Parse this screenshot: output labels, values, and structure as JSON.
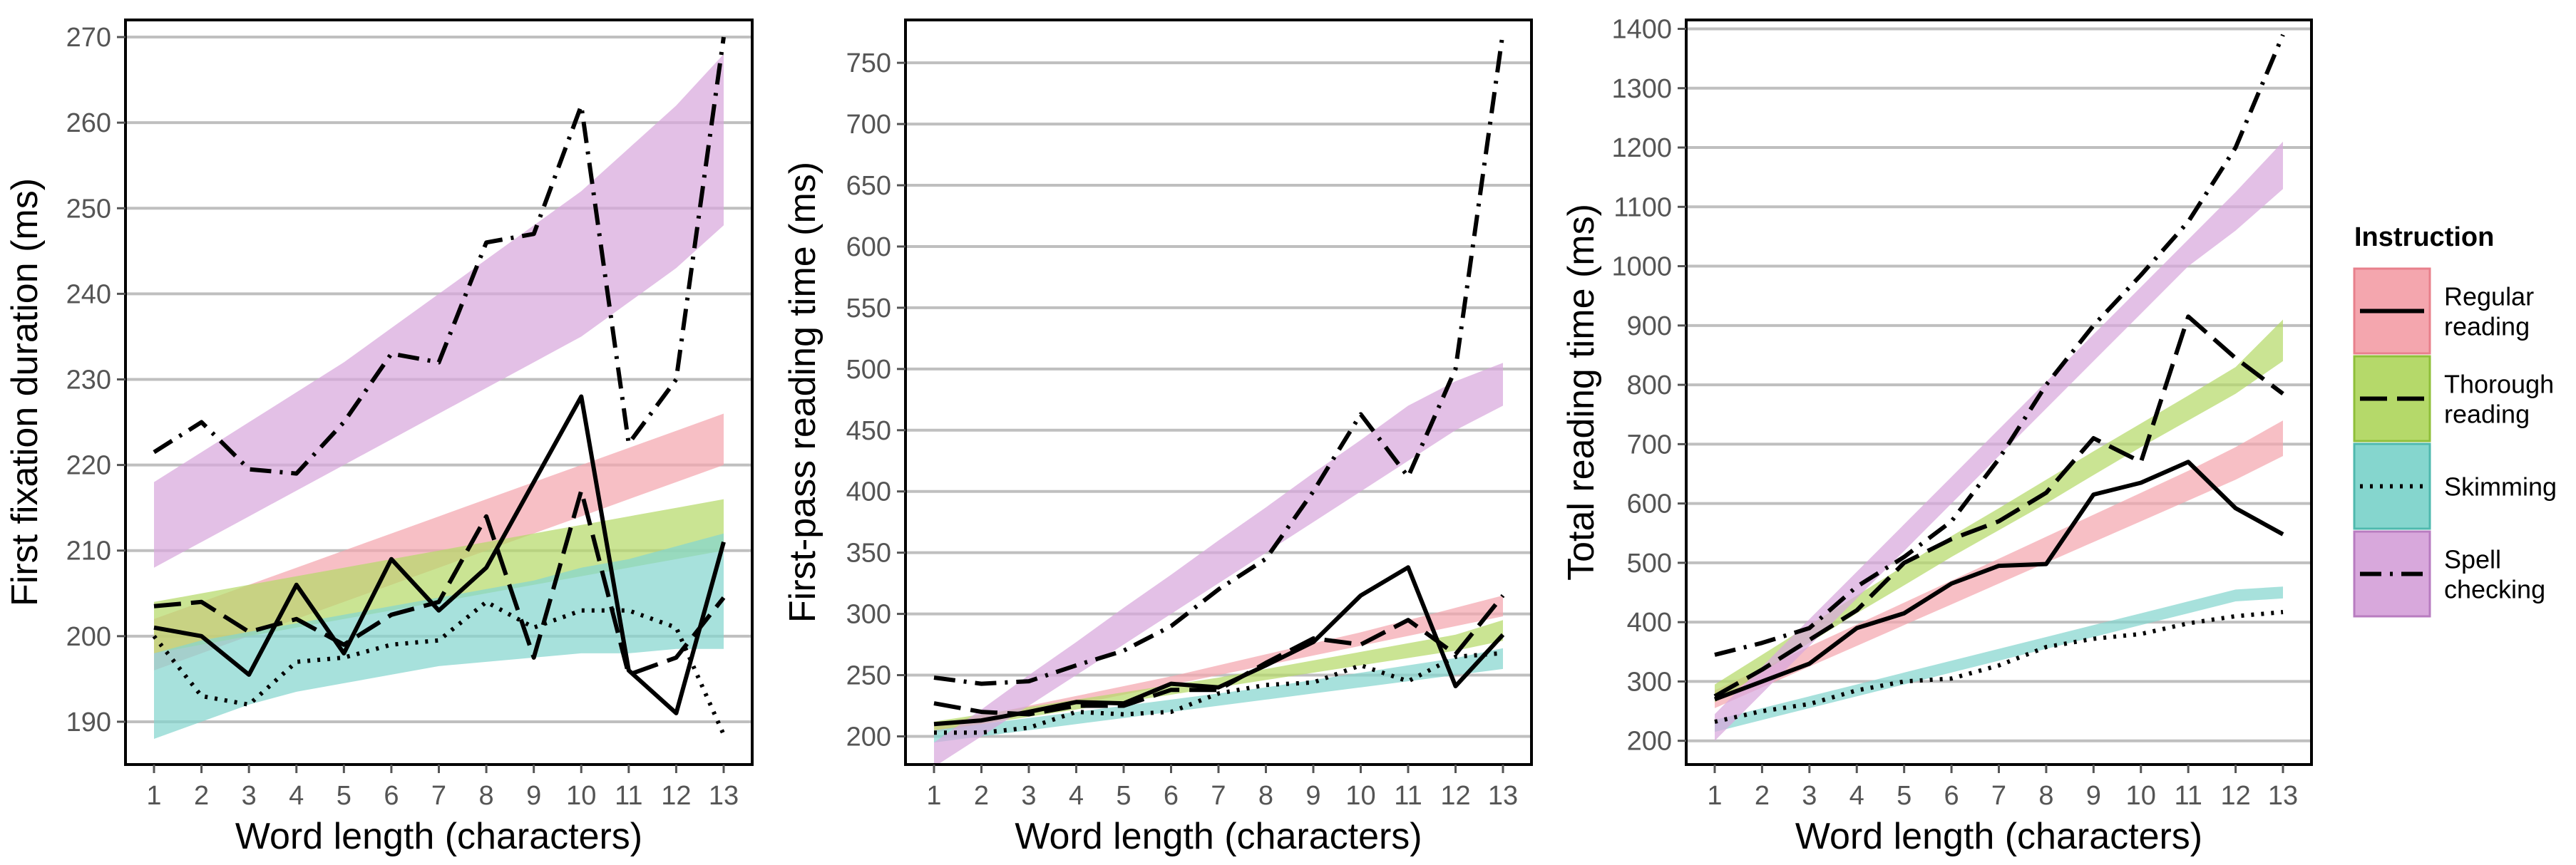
{
  "chart_data": [
    {
      "type": "line",
      "xlabel": "Word length (characters)",
      "ylabel": "First fixation duration (ms)",
      "x": [
        1,
        2,
        3,
        4,
        5,
        6,
        7,
        8,
        9,
        10,
        11,
        12,
        13
      ],
      "ylim": [
        185,
        272
      ],
      "yticks": [
        190,
        200,
        210,
        220,
        230,
        240,
        250,
        260,
        270
      ],
      "grid": true,
      "series": [
        {
          "name": "Regular reading",
          "values": [
            201,
            200,
            195.5,
            206,
            198,
            209,
            203,
            208,
            218,
            228,
            196,
            191,
            211
          ],
          "band": {
            "lower": [
              196,
              198,
              200,
              202,
              204,
              206,
              208,
              210,
              212,
              214,
              216,
              218,
              220
            ],
            "upper": [
              202,
              204,
              206,
              208,
              210,
              212,
              214,
              216,
              218,
              220,
              222,
              224,
              226
            ]
          }
        },
        {
          "name": "Thorough reading",
          "values": [
            203.5,
            204,
            200.5,
            202,
            199,
            202.5,
            204,
            214,
            197.5,
            217,
            195.5,
            197.5,
            204.5
          ],
          "band": {
            "lower": [
              198,
              199,
              200,
              201,
              202,
              203,
              204,
              205,
              206,
              207,
              208,
              209,
              210
            ],
            "upper": [
              204,
              205,
              206,
              207,
              208,
              209,
              210,
              211,
              212,
              213,
              214,
              215,
              216
            ]
          }
        },
        {
          "name": "Skimming",
          "values": [
            200,
            193,
            192,
            197,
            197.5,
            199,
            199.5,
            204,
            201,
            203,
            203,
            201,
            188.5
          ],
          "band": {
            "lower": [
              188,
              190,
              192,
              193.5,
              194.5,
              195.5,
              196.5,
              197,
              197.5,
              198,
              198,
              198.5,
              198.5
            ],
            "upper": [
              198,
              199.5,
              200.5,
              201.5,
              202.5,
              203.5,
              204.5,
              205.5,
              206.5,
              208,
              209,
              210.5,
              212
            ]
          }
        },
        {
          "name": "Spell checking",
          "values": [
            221.5,
            225,
            219.5,
            219,
            225,
            233,
            232,
            246,
            247,
            262,
            222.5,
            230,
            270
          ],
          "band": {
            "lower": [
              208,
              211,
              214,
              217,
              220,
              223,
              226,
              229,
              232,
              235,
              239,
              243,
              248
            ],
            "upper": [
              218,
              221.5,
              225,
              228.5,
              232,
              236,
              240,
              244,
              248,
              252,
              257,
              262,
              268
            ]
          }
        }
      ]
    },
    {
      "type": "line",
      "xlabel": "Word length (characters)",
      "ylabel": "First-pass reading time (ms)",
      "x": [
        1,
        2,
        3,
        4,
        5,
        6,
        7,
        8,
        9,
        10,
        11,
        12,
        13
      ],
      "ylim": [
        177,
        785
      ],
      "yticks": [
        200,
        250,
        300,
        350,
        400,
        450,
        500,
        550,
        600,
        650,
        700,
        750
      ],
      "grid": true,
      "series": [
        {
          "name": "Regular reading",
          "values": [
            210,
            213,
            220,
            228,
            227,
            243,
            240,
            258,
            277,
            315,
            338,
            241,
            283
          ],
          "band": {
            "lower": [
              203,
              210,
              218,
              226,
              234,
              242,
              250,
              258,
              266,
              274,
              282,
              290,
              298
            ],
            "upper": [
              210,
              217,
              225,
              233,
              241,
              249,
              258,
              267,
              276,
              285,
              295,
              305,
              315
            ]
          }
        },
        {
          "name": "Thorough reading",
          "values": [
            227,
            220,
            218,
            225,
            225,
            238,
            238,
            260,
            280,
            275,
            295,
            267,
            315
          ],
          "band": {
            "lower": [
              205,
              210,
              216,
              222,
              228,
              234,
              240,
              246,
              252,
              258,
              264,
              270,
              278
            ],
            "upper": [
              212,
              218,
              224,
              230,
              236,
              242,
              248,
              255,
              262,
              269,
              276,
              283,
              295
            ]
          }
        },
        {
          "name": "Skimming",
          "values": [
            203,
            203,
            207,
            220,
            218,
            220,
            235,
            242,
            244,
            258,
            245,
            265,
            268
          ],
          "band": {
            "lower": [
              195,
              200,
              205,
              210,
              215,
              220,
              225,
              230,
              235,
              240,
              245,
              250,
              255
            ],
            "upper": [
              205,
              210,
              215,
              220,
              225,
              230,
              235,
              240,
              246,
              252,
              258,
              264,
              272
            ]
          }
        },
        {
          "name": "Spell checking",
          "values": [
            248,
            243,
            245,
            258,
            270,
            290,
            320,
            345,
            400,
            463,
            412,
            500,
            775
          ],
          "band": {
            "lower": [
              175,
              200,
              225,
              250,
              275,
              300,
              325,
              350,
              375,
              400,
              425,
              450,
              470
            ],
            "upper": [
              195,
              222,
              250,
              277,
              305,
              332,
              360,
              387,
              415,
              442,
              470,
              490,
              505
            ]
          }
        }
      ]
    },
    {
      "type": "line",
      "xlabel": "Word length (characters)",
      "ylabel": "Total reading time (ms)",
      "x": [
        1,
        2,
        3,
        4,
        5,
        6,
        7,
        8,
        9,
        10,
        11,
        12,
        13
      ],
      "ylim": [
        160,
        1415
      ],
      "yticks": [
        200,
        300,
        400,
        500,
        600,
        700,
        800,
        900,
        1000,
        1100,
        1200,
        1300,
        1400
      ],
      "grid": true,
      "series": [
        {
          "name": "Regular reading",
          "values": [
            270,
            300,
            330,
            390,
            415,
            465,
            495,
            498,
            615,
            635,
            670,
            592,
            548
          ],
          "band": {
            "lower": [
              255,
              290,
              325,
              360,
              395,
              430,
              465,
              500,
              535,
              570,
              605,
              640,
              680
            ],
            "upper": [
              285,
              322,
              359,
              396,
              433,
              470,
              507,
              544,
              581,
              618,
              655,
              695,
              740
            ]
          }
        },
        {
          "name": "Thorough reading",
          "values": [
            275,
            320,
            370,
            420,
            500,
            540,
            570,
            618,
            710,
            670,
            915,
            845,
            785
          ],
          "band": {
            "lower": [
              265,
              315,
              365,
              415,
              462,
              510,
              555,
              600,
              648,
              695,
              740,
              785,
              840
            ],
            "upper": [
              295,
              345,
              395,
              445,
              495,
              545,
              592,
              640,
              688,
              735,
              782,
              830,
              910
            ]
          }
        },
        {
          "name": "Skimming",
          "values": [
            232,
            250,
            262,
            285,
            300,
            305,
            327,
            358,
            372,
            380,
            398,
            410,
            417
          ],
          "band": {
            "lower": [
              215,
              235,
              255,
              275,
              295,
              315,
              335,
              355,
              375,
              395,
              415,
              435,
              440
            ],
            "upper": [
              235,
              255,
              275,
              295,
              315,
              335,
              355,
              375,
              395,
              415,
              435,
              455,
              460
            ]
          }
        },
        {
          "name": "Spell checking",
          "values": [
            345,
            365,
            390,
            460,
            510,
            570,
            675,
            800,
            900,
            985,
            1075,
            1200,
            1390
          ],
          "band": {
            "lower": [
              200,
              280,
              360,
              440,
              520,
              600,
              680,
              760,
              840,
              920,
              1000,
              1060,
              1130
            ],
            "upper": [
              245,
              325,
              405,
              485,
              565,
              645,
              725,
              805,
              885,
              965,
              1045,
              1125,
              1210
            ]
          }
        }
      ]
    }
  ],
  "legend": {
    "title": "Instruction",
    "items": [
      {
        "lines": [
          "Regular",
          "reading"
        ],
        "fill": "#F4A6AE",
        "stroke": "#E8808C",
        "dash": "none"
      },
      {
        "lines": [
          "Thorough",
          "reading"
        ],
        "fill": "#B5D96A",
        "stroke": "#8FBF3A",
        "dash": "38 14"
      },
      {
        "lines": [
          "Skimming"
        ],
        "fill": "#85D6CE",
        "stroke": "#4FB9AE",
        "dash": "4 10"
      },
      {
        "lines": [
          "Spell",
          "checking"
        ],
        "fill": "#D8A8DC",
        "stroke": "#B87CC0",
        "dash": "30 12 4 12"
      }
    ]
  },
  "colors": {
    "regular": "#F4A6AE",
    "thorough": "#B5D96A",
    "skimming": "#85D6CE",
    "spell": "#D8A8DC",
    "grid": "#BFBFBF",
    "line": "#000000"
  }
}
